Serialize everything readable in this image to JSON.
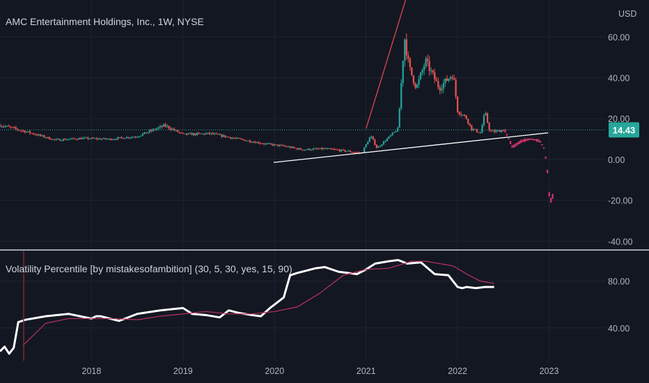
{
  "chart_data": [
    {
      "type": "candlestick",
      "title": "AMC Entertainment Holdings, Inc., 1W, NYSE",
      "currency": "USD",
      "x_ticks": [
        "2018",
        "2019",
        "2020",
        "2021",
        "2022",
        "2023"
      ],
      "y_ticks": [
        "60.00",
        "40.00",
        "20.00",
        "0.00",
        "-20.00",
        "-40.00"
      ],
      "ylim": [
        -44,
        78
      ],
      "last_price": "14.43",
      "colors": {
        "up": "#26a69a",
        "down": "#ef5350",
        "projection": "#d6336c",
        "last_price_badge": "#26a69a"
      },
      "price_path": [
        [
          2017.0,
          16.8
        ],
        [
          2017.3,
          13.4
        ],
        [
          2017.6,
          9.5
        ],
        [
          2017.9,
          10.3
        ],
        [
          2018.2,
          9.9
        ],
        [
          2018.5,
          11.3
        ],
        [
          2018.8,
          16.6
        ],
        [
          2019.0,
          12.2
        ],
        [
          2019.3,
          12.6
        ],
        [
          2019.6,
          10.0
        ],
        [
          2019.9,
          7.6
        ],
        [
          2020.1,
          6.5
        ],
        [
          2020.3,
          4.8
        ],
        [
          2020.55,
          5.2
        ],
        [
          2020.8,
          4.0
        ],
        [
          2020.95,
          2.9
        ],
        [
          2021.05,
          11.5
        ],
        [
          2021.12,
          5.5
        ],
        [
          2021.2,
          8.8
        ],
        [
          2021.35,
          15.0
        ],
        [
          2021.42,
          60.0
        ],
        [
          2021.47,
          45.0
        ],
        [
          2021.55,
          35.0
        ],
        [
          2021.65,
          48.0
        ],
        [
          2021.8,
          35.0
        ],
        [
          2021.95,
          42.0
        ],
        [
          2022.0,
          24.0
        ],
        [
          2022.1,
          20.0
        ],
        [
          2022.15,
          15.0
        ],
        [
          2022.25,
          13.0
        ],
        [
          2022.3,
          23.0
        ],
        [
          2022.35,
          14.0
        ],
        [
          2022.4,
          13.5
        ],
        [
          2022.5,
          14.4
        ]
      ],
      "projection_path": [
        [
          2022.52,
          14.0
        ],
        [
          2022.6,
          6.0
        ],
        [
          2022.7,
          9.0
        ],
        [
          2022.8,
          10.0
        ],
        [
          2022.9,
          9.0
        ],
        [
          2022.95,
          5.0
        ],
        [
          2022.98,
          -5.0
        ],
        [
          2023.0,
          -17.0
        ],
        [
          2023.02,
          -20.0
        ],
        [
          2023.05,
          -17.0
        ]
      ],
      "trendlines": [
        {
          "color": "#ffffff",
          "from": [
            2019.99,
            -1.5
          ],
          "to": [
            2022.99,
            13.0
          ]
        },
        {
          "color": "#e0464b",
          "from": [
            2021.0,
            15.0
          ],
          "to": [
            2021.48,
            85.0
          ]
        }
      ]
    },
    {
      "type": "line",
      "title": "Volatility Percentile [by mistakesofambition] (30, 5, 30, yes, 15, 90)",
      "y_ticks": [
        "80.00",
        "40.00"
      ],
      "ylim": [
        12,
        106
      ],
      "series": [
        {
          "color": "#ffffff",
          "x": [
            2017.0,
            2017.05,
            2017.1,
            2017.15,
            2017.2,
            2017.28,
            2017.5,
            2017.75,
            2018.0,
            2018.05,
            2018.1,
            2018.3,
            2018.5,
            2018.75,
            2019.0,
            2019.1,
            2019.25,
            2019.4,
            2019.5,
            2019.6,
            2019.75,
            2019.85,
            2019.95,
            2020.0,
            2020.1,
            2020.17,
            2020.25,
            2020.35,
            2020.45,
            2020.55,
            2020.7,
            2020.9,
            2021.0,
            2021.1,
            2021.25,
            2021.35,
            2021.45,
            2021.6,
            2021.75,
            2021.9,
            2022.0,
            2022.05,
            2022.1,
            2022.2,
            2022.3,
            2022.4
          ],
          "y": [
            20,
            24,
            18,
            23,
            45,
            47,
            50,
            52,
            48,
            50,
            50,
            46,
            52,
            55,
            57,
            52,
            51,
            49,
            55,
            53,
            51,
            50,
            57,
            60,
            66,
            85,
            87,
            89,
            91,
            92,
            88,
            86,
            90,
            95,
            97,
            98,
            95,
            96,
            86,
            85,
            75,
            74,
            75,
            74,
            75,
            75
          ]
        },
        {
          "color": "#b0305c",
          "x": [
            2017.25,
            2017.5,
            2017.75,
            2018.0,
            2018.25,
            2018.5,
            2018.75,
            2019.0,
            2019.25,
            2019.5,
            2019.75,
            2020.0,
            2020.25,
            2020.5,
            2020.75,
            2021.0,
            2021.25,
            2021.5,
            2021.65,
            2021.8,
            2021.95,
            2022.1,
            2022.25,
            2022.4
          ],
          "y": [
            25,
            44,
            48,
            48,
            48,
            47,
            50,
            52,
            54,
            52,
            52,
            54,
            58,
            70,
            85,
            90,
            91,
            97,
            97,
            95,
            93,
            86,
            80,
            78
          ]
        }
      ]
    }
  ]
}
